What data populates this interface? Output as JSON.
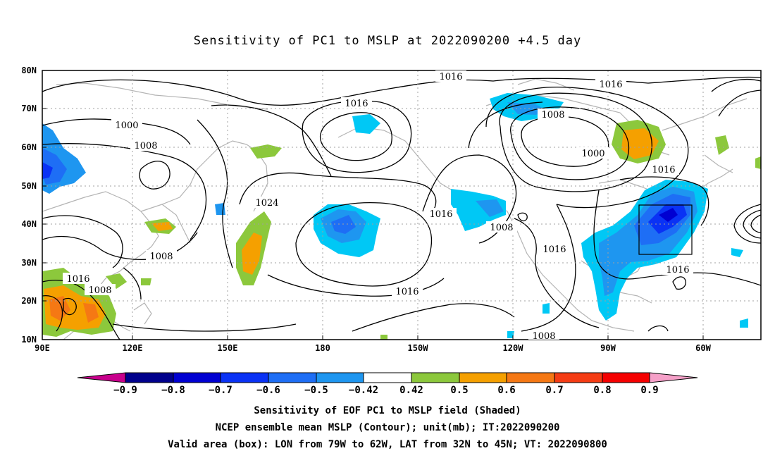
{
  "title": "Sensitivity of PC1 to MSLP at 2022090200 +4.5 day",
  "lat_ticks": [
    "80N",
    "70N",
    "60N",
    "50N",
    "40N",
    "30N",
    "20N",
    "10N"
  ],
  "lon_ticks": [
    "90E",
    "120E",
    "150E",
    "180",
    "150W",
    "120W",
    "90W",
    "60W"
  ],
  "contour_labels": [
    {
      "text": "1016",
      "name": "contour-label-1016-arctic"
    },
    {
      "text": "1016",
      "name": "contour-label-1016-greenland"
    },
    {
      "text": "1000",
      "name": "contour-label-1000-siberia"
    },
    {
      "text": "1016",
      "name": "contour-label-1016-bering"
    },
    {
      "text": "1008",
      "name": "contour-label-1008-canada"
    },
    {
      "text": "1008",
      "name": "contour-label-1008-asia"
    },
    {
      "text": "1000",
      "name": "contour-label-1000-hudson"
    },
    {
      "text": "1016",
      "name": "contour-label-1016-atlantic"
    },
    {
      "text": "1024",
      "name": "contour-label-1024-pacific"
    },
    {
      "text": "1016",
      "name": "contour-label-1016-northpacific"
    },
    {
      "text": "1008",
      "name": "contour-label-1008-westcoast"
    },
    {
      "text": "1016",
      "name": "contour-label-1016-mexico"
    },
    {
      "text": "1008",
      "name": "contour-label-1008-china"
    },
    {
      "text": "1016",
      "name": "contour-label-1016-caribbean"
    },
    {
      "text": "1016",
      "name": "contour-label-1016-indochina"
    },
    {
      "text": "1008",
      "name": "contour-label-1008-indochina"
    },
    {
      "text": "1016",
      "name": "contour-label-1016-tropical-pacific"
    },
    {
      "text": "1008",
      "name": "contour-label-1008-eastpacific"
    }
  ],
  "colorbar": {
    "labels": [
      "−0.9",
      "−0.8",
      "−0.7",
      "−0.6",
      "−0.5",
      "−0.42",
      "0.42",
      "0.5",
      "0.6",
      "0.7",
      "0.8",
      "0.9"
    ],
    "colors": [
      "#00008c",
      "#0000d2",
      "#0a32f5",
      "#1e6ef5",
      "#1e96f0",
      "#00c8f5",
      "#ffffff",
      "#8cc83c",
      "#f5a000",
      "#f57814",
      "#f53c14",
      "#f50000"
    ],
    "low_end_color": "#c8008c",
    "high_end_color": "#f5a0c8"
  },
  "captions": {
    "line1": "Sensitivity of EOF PC1 to MSLP field (Shaded)",
    "line2": "NCEP ensemble mean MSLP (Contour); unit(mb); IT:2022090200",
    "line3": "Valid area (box): LON from 79W to 62W, LAT from 32N to 45N; VT: 2022090800"
  },
  "valid_box": {
    "lon_min": -79,
    "lon_max": -62,
    "lat_min": 32,
    "lat_max": 45
  }
}
